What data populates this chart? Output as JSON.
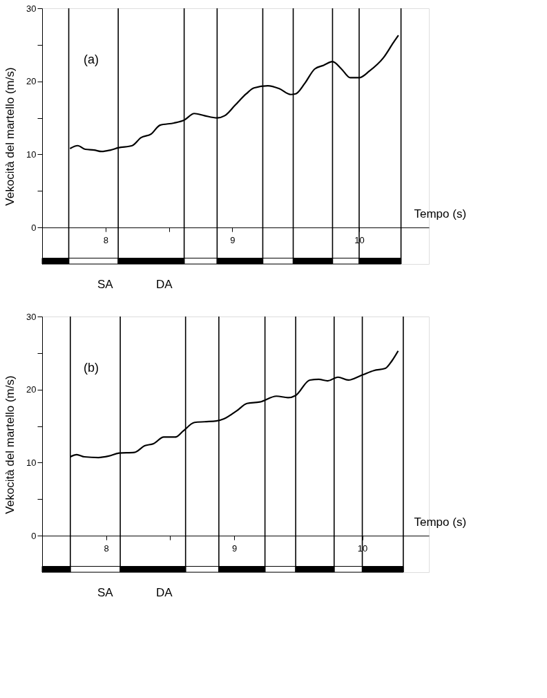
{
  "chart_data": [
    {
      "type": "line",
      "xlabel": "Tempo (s)",
      "ylabel": "Vekocità del martello (m/s)",
      "annotations": [
        "(a)",
        "SA",
        "DA"
      ],
      "xlim": [
        7.5,
        10.55
      ],
      "xticks": [
        8,
        {
          "value": 8.5,
          "label": null
        },
        9,
        10
      ],
      "ylim": [
        -5,
        30
      ],
      "yticks": [
        0,
        {
          "value": 5,
          "label": null
        },
        10,
        {
          "value": 15,
          "label": null
        },
        20,
        {
          "value": 25,
          "label": null
        },
        30
      ],
      "grid": false,
      "marker": "none",
      "line_style": "solid",
      "series": [
        {
          "color": "#000000",
          "x": [
            7.72,
            7.78,
            7.84,
            7.91,
            7.97,
            8.04,
            8.1,
            8.21,
            8.28,
            8.36,
            8.43,
            8.54,
            8.62,
            8.7,
            8.78,
            8.88,
            8.94,
            9.02,
            9.11,
            9.17,
            9.28,
            9.37,
            9.46,
            9.5,
            9.57,
            9.65,
            9.72,
            9.79,
            9.86,
            9.93,
            10.0,
            10.08,
            10.19,
            10.27,
            10.31
          ],
          "values": [
            10.8,
            11.2,
            10.7,
            10.6,
            10.4,
            10.6,
            10.9,
            11.2,
            12.3,
            12.8,
            14.0,
            14.3,
            14.7,
            15.6,
            15.3,
            15.0,
            15.3,
            16.7,
            18.3,
            19.1,
            19.4,
            19.0,
            18.2,
            18.3,
            19.7,
            21.7,
            22.2,
            22.7,
            21.7,
            20.5,
            20.5,
            21.4,
            23.2,
            25.3,
            26.3
          ]
        },
        {
          "type": "bar",
          "x": [
            7.605,
            7.905,
            8.36,
            8.75,
            9.06,
            9.36,
            9.635,
            9.895,
            10.165
          ],
          "base": [
            -5,
            -5,
            -5,
            -5,
            -5,
            -5,
            -5,
            -5,
            -5
          ],
          "values": [
            0.8,
            0.8,
            0.8,
            0.8,
            0.8,
            0.8,
            0.8,
            0.8,
            0.8
          ],
          "colors": [
            "#000000",
            "#ffffff",
            "#000000",
            "#ffffff",
            "#000000",
            "#ffffff",
            "#000000",
            "#ffffff",
            "#000000"
          ]
        }
      ],
      "ref_lines": [
        {
          "axis": "x",
          "value": 7.71
        },
        {
          "axis": "x",
          "value": 8.1
        },
        {
          "axis": "x",
          "value": 8.62
        },
        {
          "axis": "x",
          "value": 8.88
        },
        {
          "axis": "x",
          "value": 9.24
        },
        {
          "axis": "x",
          "value": 9.48
        },
        {
          "axis": "x",
          "value": 9.79
        },
        {
          "axis": "x",
          "value": 10.0
        },
        {
          "axis": "x",
          "value": 10.33
        }
      ]
    },
    {
      "type": "line",
      "xlabel": "Tempo (s)",
      "ylabel": "Vekocità del martello (m/s)",
      "annotations": [
        "(b)",
        "SA",
        "DA"
      ],
      "xlim": [
        7.5,
        10.52
      ],
      "xticks": [
        8,
        {
          "value": 8.5,
          "label": null
        },
        9,
        10
      ],
      "ylim": [
        -5,
        30
      ],
      "yticks": [
        0,
        {
          "value": 5,
          "label": null
        },
        10,
        {
          "value": 15,
          "label": null
        },
        20,
        {
          "value": 25,
          "label": null
        },
        30
      ],
      "grid": false,
      "marker": "none",
      "line_style": "solid",
      "series": [
        {
          "color": "#000000",
          "x": [
            7.72,
            7.77,
            7.83,
            7.94,
            8.02,
            8.1,
            8.22,
            8.3,
            8.37,
            8.45,
            8.54,
            8.6,
            8.69,
            8.77,
            8.86,
            8.92,
            9.02,
            9.1,
            9.2,
            9.33,
            9.42,
            9.48,
            9.59,
            9.66,
            9.73,
            9.81,
            9.89,
            10.0,
            10.09,
            10.18,
            10.23,
            10.28
          ],
          "values": [
            10.8,
            11.1,
            10.8,
            10.7,
            10.9,
            11.3,
            11.4,
            12.3,
            12.6,
            13.5,
            13.5,
            14.3,
            15.5,
            15.6,
            15.7,
            16.0,
            17.1,
            18.1,
            18.3,
            19.1,
            18.9,
            19.2,
            21.3,
            21.4,
            21.2,
            21.7,
            21.3,
            22.0,
            22.6,
            22.9,
            23.9,
            25.3
          ]
        },
        {
          "type": "bar",
          "x": [
            7.61,
            7.915,
            8.365,
            8.75,
            9.06,
            9.36,
            9.63,
            9.89,
            10.16
          ],
          "base": [
            -5,
            -5,
            -5,
            -5,
            -5,
            -5,
            -5,
            -5,
            -5
          ],
          "values": [
            0.8,
            0.8,
            0.8,
            0.8,
            0.8,
            0.8,
            0.8,
            0.8,
            0.8
          ],
          "colors": [
            "#000000",
            "#ffffff",
            "#000000",
            "#ffffff",
            "#000000",
            "#ffffff",
            "#000000",
            "#ffffff",
            "#000000"
          ]
        }
      ],
      "ref_lines": [
        {
          "axis": "x",
          "value": 7.72
        },
        {
          "axis": "x",
          "value": 8.11
        },
        {
          "axis": "x",
          "value": 8.62
        },
        {
          "axis": "x",
          "value": 8.88
        },
        {
          "axis": "x",
          "value": 9.24
        },
        {
          "axis": "x",
          "value": 9.48
        },
        {
          "axis": "x",
          "value": 9.78
        },
        {
          "axis": "x",
          "value": 10.0
        },
        {
          "axis": "x",
          "value": 10.32
        }
      ]
    }
  ]
}
